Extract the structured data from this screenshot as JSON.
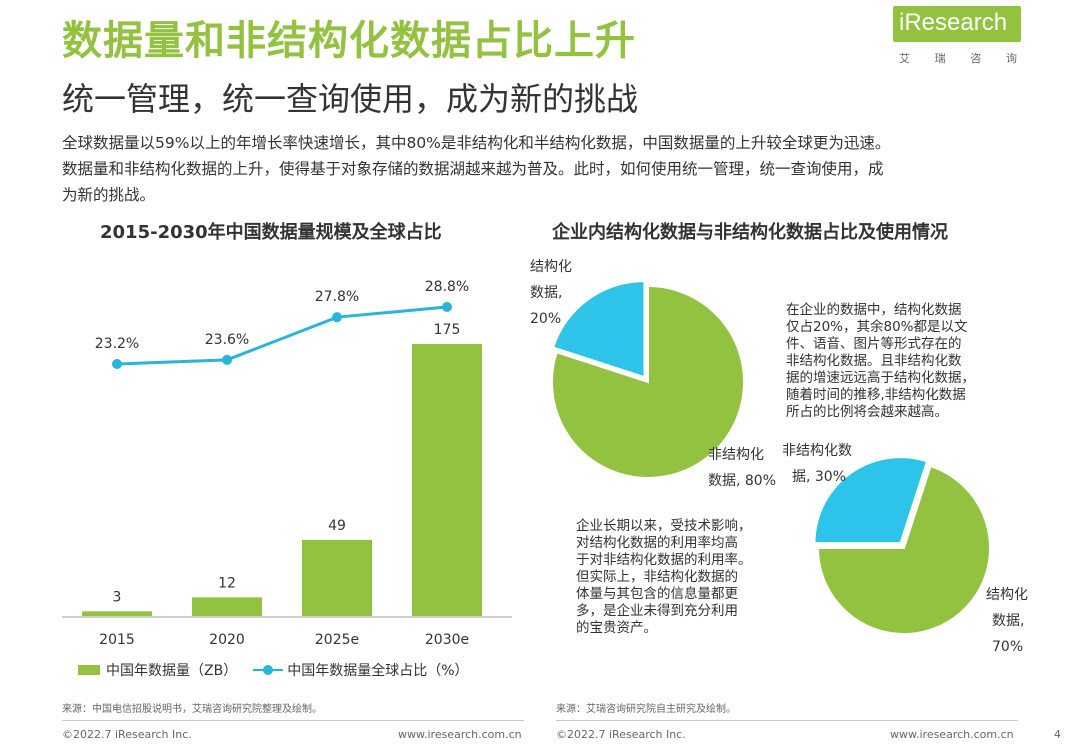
{
  "header": {
    "title": "数据量和非结构化数据占比上升",
    "subtitle": "统一管理，统一查询使用，成为新的挑战",
    "logo_text": "iResearch",
    "logo_cn": [
      "艾",
      "瑞",
      "咨",
      "询"
    ]
  },
  "intro": {
    "line1": "全球数据量以59%以上的年增长率快速增长，其中80%是非结构化和半结构化数据，中国数据量的上升较全球更为迅速。",
    "line2": "数据量和非结构化数据的上升，使得基于对象存储的数据湖越来越为普及。此时，如何使用统一管理，统一查询使用，成",
    "line3": "为新的挑战。"
  },
  "colors": {
    "green": "#93c140",
    "cyan": "#2ec4e9",
    "line": "#28b4dc",
    "axis": "#bfbfbf"
  },
  "chart_data": [
    {
      "type": "bar",
      "title": "2015-2030年中国数据量规模及全球占比",
      "categories": [
        "2015",
        "2020",
        "2025e",
        "2030e"
      ],
      "series": [
        {
          "name": "中国年数据量（ZB）",
          "type": "bar",
          "values": [
            3,
            12,
            49,
            175
          ]
        },
        {
          "name": "中国年数据量全球占比（%）",
          "type": "line",
          "values": [
            23.2,
            23.6,
            27.8,
            28.8
          ],
          "labels": [
            "23.2%",
            "23.6%",
            "27.8%",
            "28.8%"
          ]
        }
      ],
      "legend": "bottom"
    },
    {
      "type": "pie",
      "title": "企业内结构化数据与非结构化数据占比及使用情况",
      "slices": [
        {
          "label": "结构化数据",
          "value": 20,
          "display": [
            "结构化",
            "数据,",
            "20%"
          ]
        },
        {
          "label": "非结构化数据",
          "value": 80,
          "display": [
            "非结构化",
            "数据, 80%"
          ]
        }
      ]
    },
    {
      "type": "pie",
      "slices": [
        {
          "label": "非结构化数据",
          "value": 30,
          "display": [
            "非结构化数",
            "据, 30%"
          ]
        },
        {
          "label": "结构化数据",
          "value": 70,
          "display": [
            "结构化",
            "数据,",
            "70%"
          ]
        }
      ]
    }
  ],
  "notes": {
    "note1": [
      "在企业的数据中，结构化数据",
      "仅占20%，其余80%都是以文",
      "件、语音、图片等形式存在的",
      "非结构化数据。且非结构化数",
      "据的增速远远高于结构化数据，",
      "随着时间的推移,非结构化数据",
      "所占的比例将会越来越高。"
    ],
    "note2": [
      "企业长期以来，受技术影响，",
      "对结构化数据的利用率均高",
      "于对非结构化数据的利用率。",
      "但实际上，非结构化数据的",
      "体量与其包含的信息量都更",
      "多，是企业未得到充分利用",
      "的宝贵资产。"
    ]
  },
  "sources": {
    "left": "来源：中国电信招股说明书，艾瑞咨询研究院整理及绘制。",
    "right": "来源：艾瑞咨询研究院自主研究及绘制。"
  },
  "footer": {
    "left_copyright": "©2022.7 iResearch Inc.",
    "left_url": "www.iresearch.com.cn",
    "right_copyright": "©2022.7 iResearch Inc.",
    "right_url": "www.iresearch.com.cn",
    "page": "4"
  }
}
